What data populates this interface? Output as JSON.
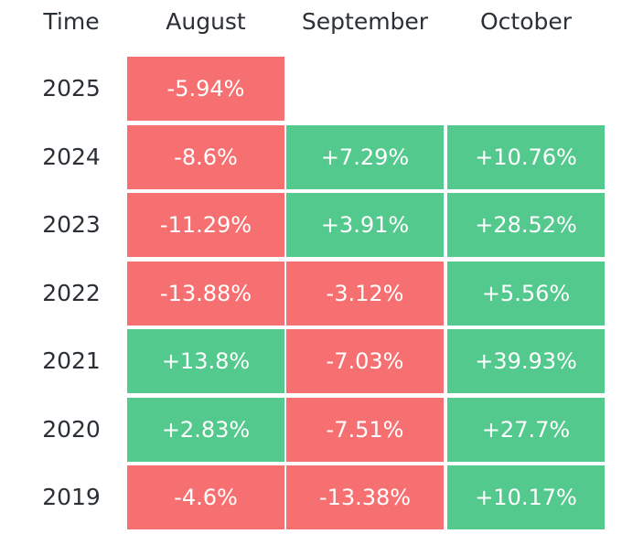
{
  "colors": {
    "positive": "#53c98e",
    "negative": "#f77071",
    "text_dark": "#2b2f36",
    "text_on_cell": "#ffffff"
  },
  "chart_data": {
    "type": "heatmap",
    "row_header": "Time",
    "columns": [
      "August",
      "September",
      "October"
    ],
    "rows": [
      {
        "year": "2025",
        "values": [
          "-5.94%",
          null,
          null
        ]
      },
      {
        "year": "2024",
        "values": [
          "-8.6%",
          "+7.29%",
          "+10.76%"
        ]
      },
      {
        "year": "2023",
        "values": [
          "-11.29%",
          "+3.91%",
          "+28.52%"
        ]
      },
      {
        "year": "2022",
        "values": [
          "-13.88%",
          "-3.12%",
          "+5.56%"
        ]
      },
      {
        "year": "2021",
        "values": [
          "+13.8%",
          "-7.03%",
          "+39.93%"
        ]
      },
      {
        "year": "2020",
        "values": [
          "+2.83%",
          "-7.51%",
          "+27.7%"
        ]
      },
      {
        "year": "2019",
        "values": [
          "-4.6%",
          "-13.38%",
          "+10.17%"
        ]
      }
    ]
  }
}
